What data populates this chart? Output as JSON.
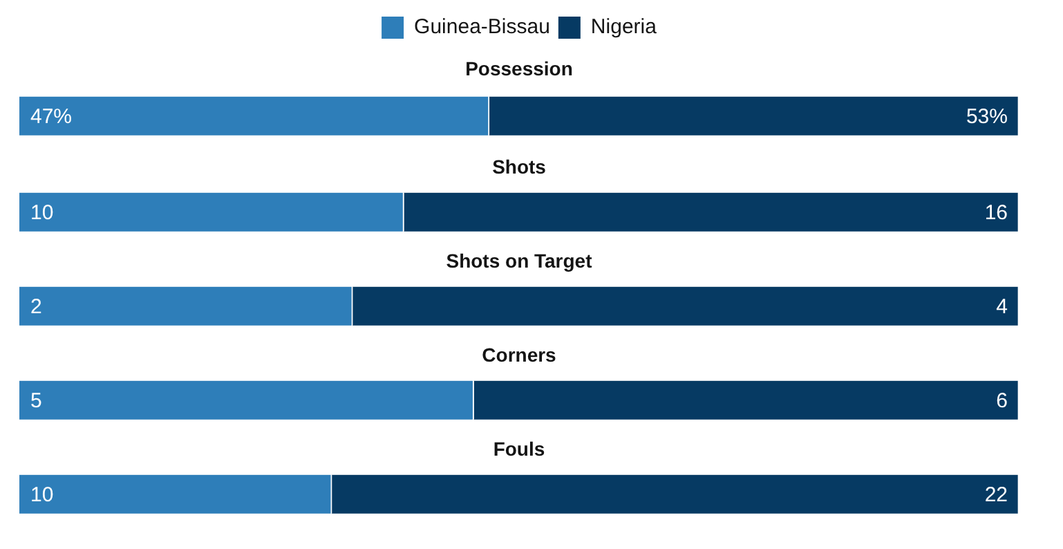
{
  "chart_data": [
    {
      "type": "bar",
      "orientation": "horizontal",
      "stacked": true,
      "legend": "top",
      "title": "Possession",
      "categories": [
        null
      ],
      "xlim": [
        0,
        100
      ],
      "tick_labels": false,
      "series": [
        {
          "name": "Guinea-Bissau",
          "color": "#2e7eb9",
          "values": [
            47
          ],
          "value_labels": [
            "47%"
          ]
        },
        {
          "name": "Nigeria",
          "color": "#063a63",
          "values": [
            53
          ],
          "value_labels": [
            "53%"
          ]
        }
      ]
    },
    {
      "type": "bar",
      "orientation": "horizontal",
      "stacked": true,
      "title": "Shots",
      "categories": [
        null
      ],
      "xlim": [
        0,
        26
      ],
      "tick_labels": false,
      "series": [
        {
          "color": "#2e7eb9",
          "values": [
            10
          ],
          "value_labels": [
            "10"
          ]
        },
        {
          "color": "#063a63",
          "values": [
            16
          ],
          "value_labels": [
            "16"
          ]
        }
      ]
    },
    {
      "type": "bar",
      "orientation": "horizontal",
      "stacked": true,
      "title": "Shots on Target",
      "categories": [
        null
      ],
      "xlim": [
        0,
        6
      ],
      "tick_labels": false,
      "series": [
        {
          "color": "#2e7eb9",
          "values": [
            2
          ],
          "value_labels": [
            "2"
          ]
        },
        {
          "color": "#063a63",
          "values": [
            4
          ],
          "value_labels": [
            "4"
          ]
        }
      ]
    },
    {
      "type": "bar",
      "orientation": "horizontal",
      "stacked": true,
      "title": "Corners",
      "categories": [
        null
      ],
      "xlim": [
        0,
        11
      ],
      "tick_labels": false,
      "series": [
        {
          "color": "#2e7eb9",
          "values": [
            5
          ],
          "value_labels": [
            "5"
          ]
        },
        {
          "color": "#063a63",
          "values": [
            6
          ],
          "value_labels": [
            "6"
          ]
        }
      ]
    },
    {
      "type": "bar",
      "orientation": "horizontal",
      "stacked": true,
      "title": "Fouls",
      "categories": [
        null
      ],
      "xlim": [
        0,
        32
      ],
      "tick_labels": false,
      "series": [
        {
          "color": "#2e7eb9",
          "values": [
            10
          ],
          "value_labels": [
            "10"
          ]
        },
        {
          "color": "#063a63",
          "values": [
            22
          ],
          "value_labels": [
            "22"
          ]
        }
      ]
    }
  ]
}
